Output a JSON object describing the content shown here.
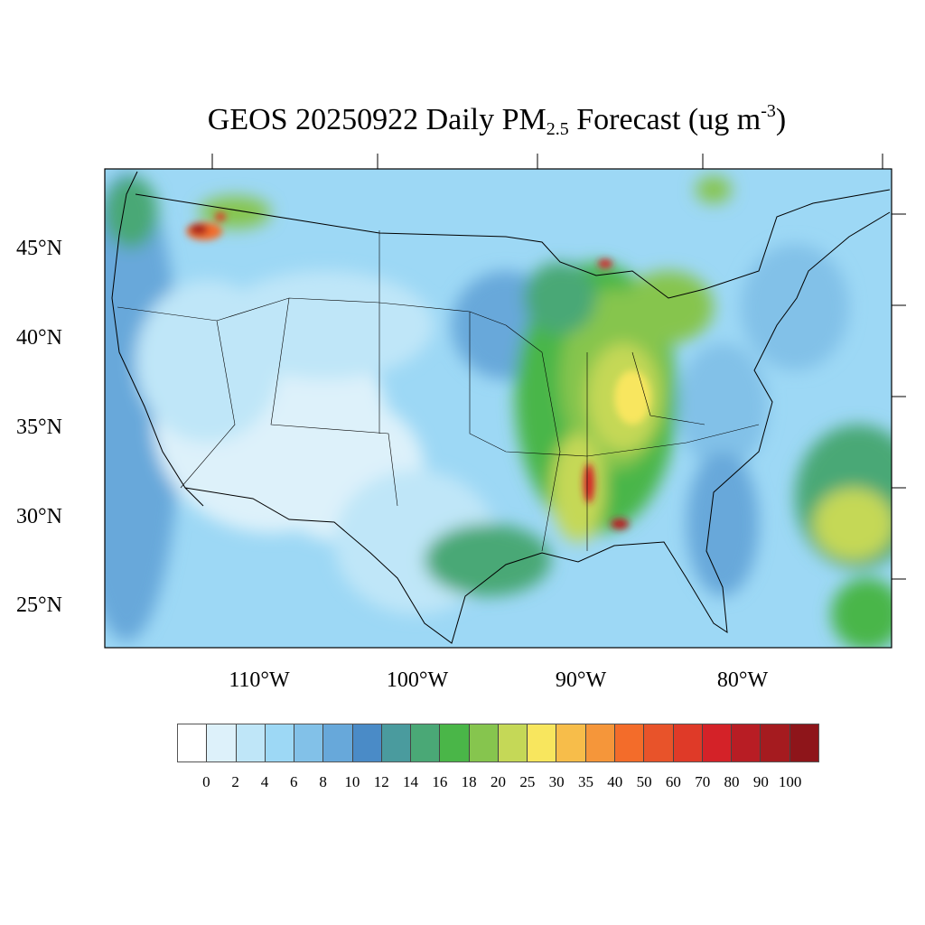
{
  "title": {
    "prefix": "GEOS 20250922 Daily PM",
    "sub": "2.5",
    "mid": " Forecast (ug m",
    "sup": "-3",
    "suffix": ")"
  },
  "lat_labels": [
    "45°N",
    "40°N",
    "35°N",
    "30°N",
    "25°N"
  ],
  "lon_labels": [
    "110°W",
    "100°W",
    "90°W",
    "80°W"
  ],
  "legend": {
    "colors": [
      "#ffffff",
      "#ddf1fa",
      "#bfe6f8",
      "#9dd8f5",
      "#82c1e8",
      "#67a8da",
      "#4a8bc7",
      "#4a9b9e",
      "#4aa876",
      "#4ab648",
      "#86c54e",
      "#c5d857",
      "#f8e65e",
      "#f7bd4a",
      "#f5963a",
      "#f36c2a",
      "#e8532a",
      "#df3a28",
      "#d42228",
      "#b81d24",
      "#a51b1f",
      "#8e151a"
    ],
    "labels": [
      "0",
      "2",
      "4",
      "6",
      "8",
      "10",
      "12",
      "14",
      "16",
      "18",
      "20",
      "25",
      "30",
      "35",
      "40",
      "50",
      "60",
      "70",
      "80",
      "90",
      "100"
    ]
  }
}
